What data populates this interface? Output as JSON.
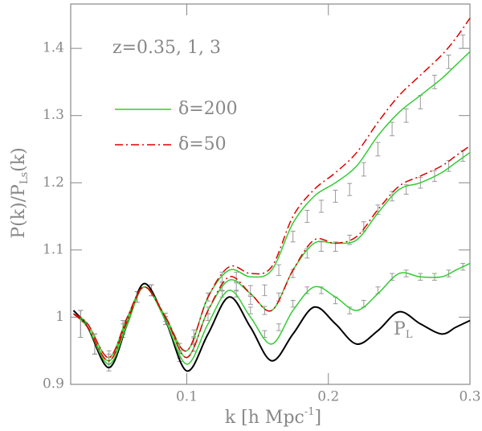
{
  "chart_data": {
    "type": "line",
    "annotation": "z=0.35, 1, 3",
    "xlabel": [
      "k [h Mpc",
      "-1",
      "]"
    ],
    "ylabel": [
      "P(k)/P",
      "Ls",
      "(k)"
    ],
    "xlim": [
      0.018,
      0.3
    ],
    "ylim": [
      0.9,
      1.466
    ],
    "xticks": [
      0.1,
      0.2,
      0.3
    ],
    "yticks": [
      0.9,
      1,
      1.1,
      1.2,
      1.3,
      1.4
    ],
    "x": [
      0.02,
      0.03,
      0.045,
      0.058,
      0.07,
      0.085,
      0.1,
      0.115,
      0.13,
      0.145,
      0.16,
      0.175,
      0.19,
      0.205,
      0.22,
      0.235,
      0.25,
      0.265,
      0.28,
      0.29,
      0.3
    ],
    "linear": {
      "name": [
        "P",
        "L"
      ],
      "color": "#000000",
      "values": [
        1.01,
        0.985,
        0.925,
        0.99,
        1.05,
        0.995,
        0.92,
        0.975,
        1.03,
        0.985,
        0.935,
        0.975,
        1.015,
        0.99,
        0.96,
        0.98,
        1.008,
        0.99,
        0.975,
        0.985,
        0.995
      ]
    },
    "series": [
      {
        "name": "δ=200",
        "color": "#33cc33",
        "dashed": false,
        "curves": [
          [
            1.005,
            0.985,
            0.93,
            0.99,
            1.045,
            0.995,
            0.93,
            0.99,
            1.04,
            1.0,
            0.96,
            1.01,
            1.045,
            1.03,
            1.01,
            1.035,
            1.065,
            1.06,
            1.06,
            1.07,
            1.08
          ],
          [
            1.005,
            0.985,
            0.935,
            0.995,
            1.045,
            1.0,
            0.94,
            1.01,
            1.055,
            1.035,
            1.01,
            1.07,
            1.11,
            1.11,
            1.115,
            1.155,
            1.19,
            1.2,
            1.215,
            1.23,
            1.245
          ],
          [
            1.005,
            0.99,
            0.94,
            1.0,
            1.045,
            1.0,
            0.95,
            1.03,
            1.07,
            1.06,
            1.07,
            1.14,
            1.18,
            1.2,
            1.225,
            1.27,
            1.305,
            1.33,
            1.355,
            1.375,
            1.395
          ]
        ]
      },
      {
        "name": "δ=50",
        "color": "#dd0000",
        "dashed": true,
        "curves": [
          [
            1.005,
            0.985,
            0.935,
            0.995,
            1.045,
            1.0,
            0.94,
            1.01,
            1.06,
            1.035,
            1.01,
            1.07,
            1.115,
            1.11,
            1.12,
            1.16,
            1.195,
            1.21,
            1.225,
            1.24,
            1.255
          ],
          [
            1.005,
            0.99,
            0.94,
            1.0,
            1.045,
            1.0,
            0.95,
            1.03,
            1.075,
            1.065,
            1.075,
            1.15,
            1.19,
            1.215,
            1.245,
            1.29,
            1.33,
            1.36,
            1.39,
            1.415,
            1.445
          ]
        ]
      }
    ],
    "points": [
      {
        "x": [
          0.025,
          0.035,
          0.045,
          0.055,
          0.065,
          0.075,
          0.085,
          0.095,
          0.105,
          0.115,
          0.125,
          0.135,
          0.145,
          0.155,
          0.165,
          0.175,
          0.185,
          0.195,
          0.205,
          0.215,
          0.225,
          0.235,
          0.245,
          0.255,
          0.265,
          0.275,
          0.285,
          0.295
        ],
        "values": [
          0.99,
          0.96,
          0.93,
          0.98,
          1.03,
          1.04,
          0.995,
          0.94,
          0.955,
          1.0,
          1.035,
          1.035,
          1.01,
          0.975,
          0.985,
          1.02,
          1.04,
          1.04,
          1.025,
          1.01,
          1.02,
          1.04,
          1.06,
          1.065,
          1.06,
          1.06,
          1.065,
          1.075
        ],
        "errors": [
          0.02,
          0.015,
          0.01,
          0.01,
          0.008,
          0.008,
          0.006,
          0.006,
          0.006,
          0.005,
          0.005,
          0.005,
          0.005,
          0.005,
          0.005,
          0.005,
          0.005,
          0.005,
          0.005,
          0.005,
          0.005,
          0.005,
          0.005,
          0.005,
          0.005,
          0.005,
          0.005,
          0.005
        ]
      },
      {
        "x": [
          0.025,
          0.035,
          0.045,
          0.055,
          0.065,
          0.075,
          0.085,
          0.095,
          0.105,
          0.115,
          0.125,
          0.135,
          0.145,
          0.155,
          0.165,
          0.175,
          0.185,
          0.195,
          0.205,
          0.215,
          0.225,
          0.235,
          0.245,
          0.255,
          0.265,
          0.275,
          0.285,
          0.295
        ],
        "values": [
          0.99,
          0.96,
          0.935,
          0.985,
          1.03,
          1.04,
          0.995,
          0.945,
          0.965,
          1.01,
          1.045,
          1.045,
          1.025,
          1.01,
          1.03,
          1.065,
          1.095,
          1.105,
          1.105,
          1.115,
          1.135,
          1.16,
          1.18,
          1.19,
          1.2,
          1.21,
          1.225,
          1.24
        ],
        "errors": [
          0.02,
          0.015,
          0.01,
          0.01,
          0.008,
          0.008,
          0.006,
          0.006,
          0.006,
          0.005,
          0.006,
          0.006,
          0.006,
          0.006,
          0.006,
          0.006,
          0.007,
          0.007,
          0.007,
          0.007,
          0.007,
          0.007,
          0.007,
          0.007,
          0.008,
          0.008,
          0.008,
          0.008
        ]
      },
      {
        "x": [
          0.025,
          0.035,
          0.045,
          0.055,
          0.065,
          0.075,
          0.085,
          0.095,
          0.105,
          0.115,
          0.125,
          0.135,
          0.145,
          0.155,
          0.165,
          0.175,
          0.185,
          0.195,
          0.205,
          0.215,
          0.225,
          0.235,
          0.245,
          0.255,
          0.265,
          0.275,
          0.285,
          0.295
        ],
        "values": [
          0.99,
          0.96,
          0.94,
          0.985,
          1.03,
          1.04,
          1.0,
          0.955,
          0.975,
          1.03,
          1.06,
          1.06,
          1.04,
          1.04,
          1.07,
          1.12,
          1.15,
          1.165,
          1.18,
          1.19,
          1.22,
          1.25,
          1.28,
          1.3,
          1.32,
          1.35,
          1.38,
          1.41
        ],
        "errors": [
          0.02,
          0.015,
          0.01,
          0.01,
          0.008,
          0.008,
          0.006,
          0.006,
          0.006,
          0.006,
          0.007,
          0.007,
          0.007,
          0.008,
          0.008,
          0.008,
          0.009,
          0.009,
          0.009,
          0.009,
          0.01,
          0.01,
          0.01,
          0.01,
          0.01,
          0.01,
          0.01,
          0.01
        ]
      }
    ]
  }
}
